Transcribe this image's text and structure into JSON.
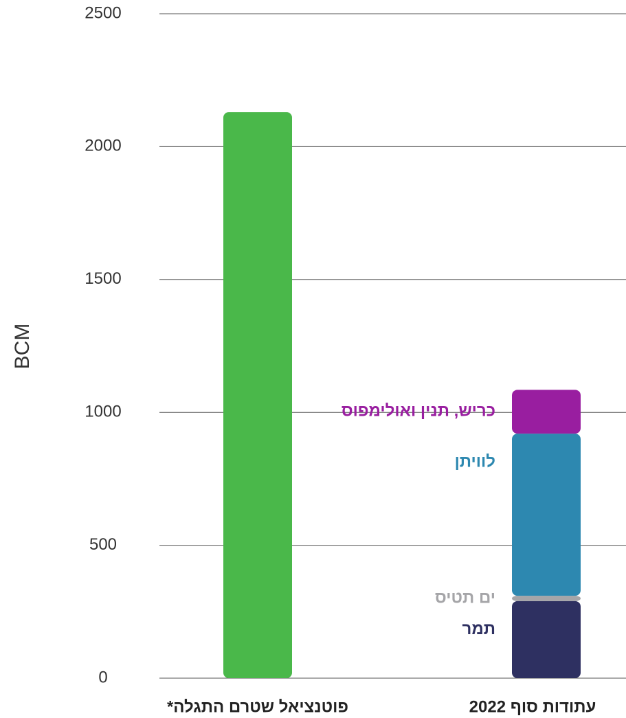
{
  "chart_data": {
    "type": "bar",
    "stacked": true,
    "ylabel": "BCM",
    "categories": [
      "פוטנציאל שטרם התגלה*",
      "עתודות סוף 2022"
    ],
    "series": [
      {
        "color": "#4ab84a",
        "values": [
          2130,
          null
        ]
      },
      {
        "name": "תמר",
        "color": "#2e3061",
        "values": [
          null,
          290
        ]
      },
      {
        "name": "ים תטיס",
        "color": "#a5a5a8",
        "values": [
          null,
          20
        ]
      },
      {
        "name": "לוויתן",
        "color": "#2d88b0",
        "values": [
          null,
          610
        ]
      },
      {
        "name": "כריש, תנין ואולימפוס",
        "color": "#991ea0",
        "values": [
          null,
          165
        ]
      }
    ],
    "ylim": [
      0,
      2500
    ],
    "yticks": [
      0,
      500,
      1000,
      1500,
      2000,
      2500
    ],
    "grid": true
  }
}
